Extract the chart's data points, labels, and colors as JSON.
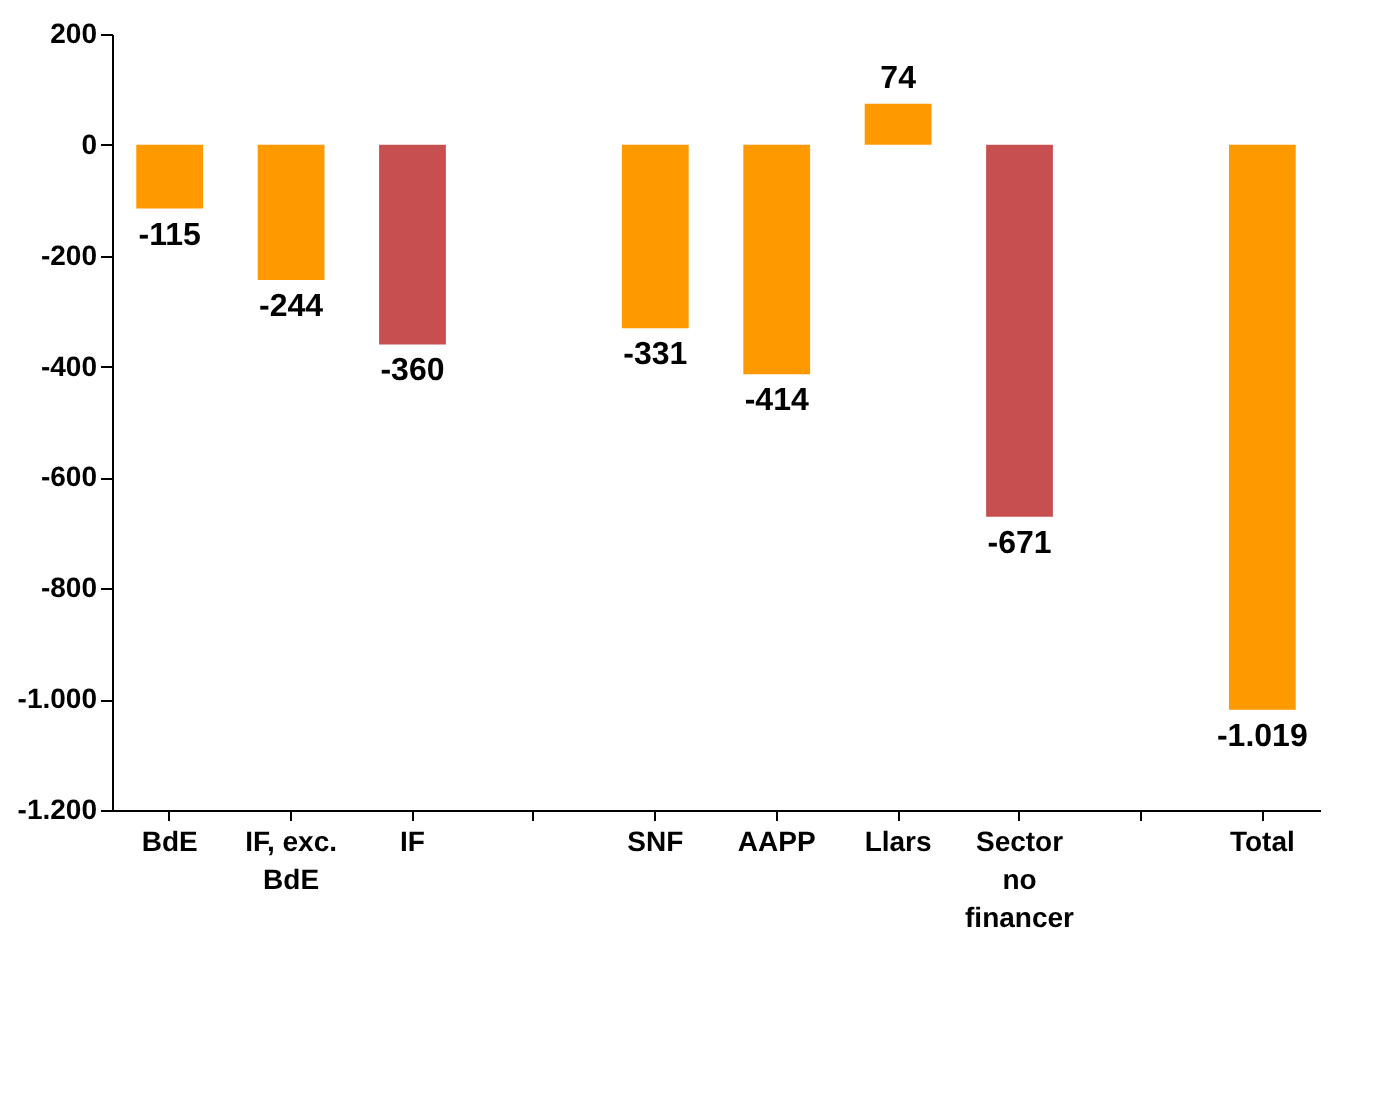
{
  "chart_data": {
    "type": "bar",
    "categories": [
      "BdE",
      "IF, exc. BdE",
      "IF",
      null,
      "SNF",
      "AAPP",
      "Llars",
      "Sector no financer",
      null,
      "Total"
    ],
    "values": [
      -115,
      -244,
      -360,
      null,
      -331,
      -414,
      74,
      -671,
      null,
      -1019
    ],
    "colors": [
      "#ff9900",
      "#ff9900",
      "#c84f4f",
      null,
      "#ff9900",
      "#ff9900",
      "#ff9900",
      "#c84f4f",
      null,
      "#ff9900"
    ],
    "value_labels": [
      "-115",
      "-244",
      "-360",
      null,
      "-331",
      "-414",
      "74",
      "-671",
      null,
      "-1.019"
    ],
    "ylim": [
      -1200,
      200
    ],
    "yticks": [
      {
        "value": -1200,
        "label": "-1.200"
      },
      {
        "value": -1000,
        "label": "-1.000"
      },
      -800,
      -600,
      -400,
      -200,
      0,
      200
    ],
    "grid": false
  }
}
